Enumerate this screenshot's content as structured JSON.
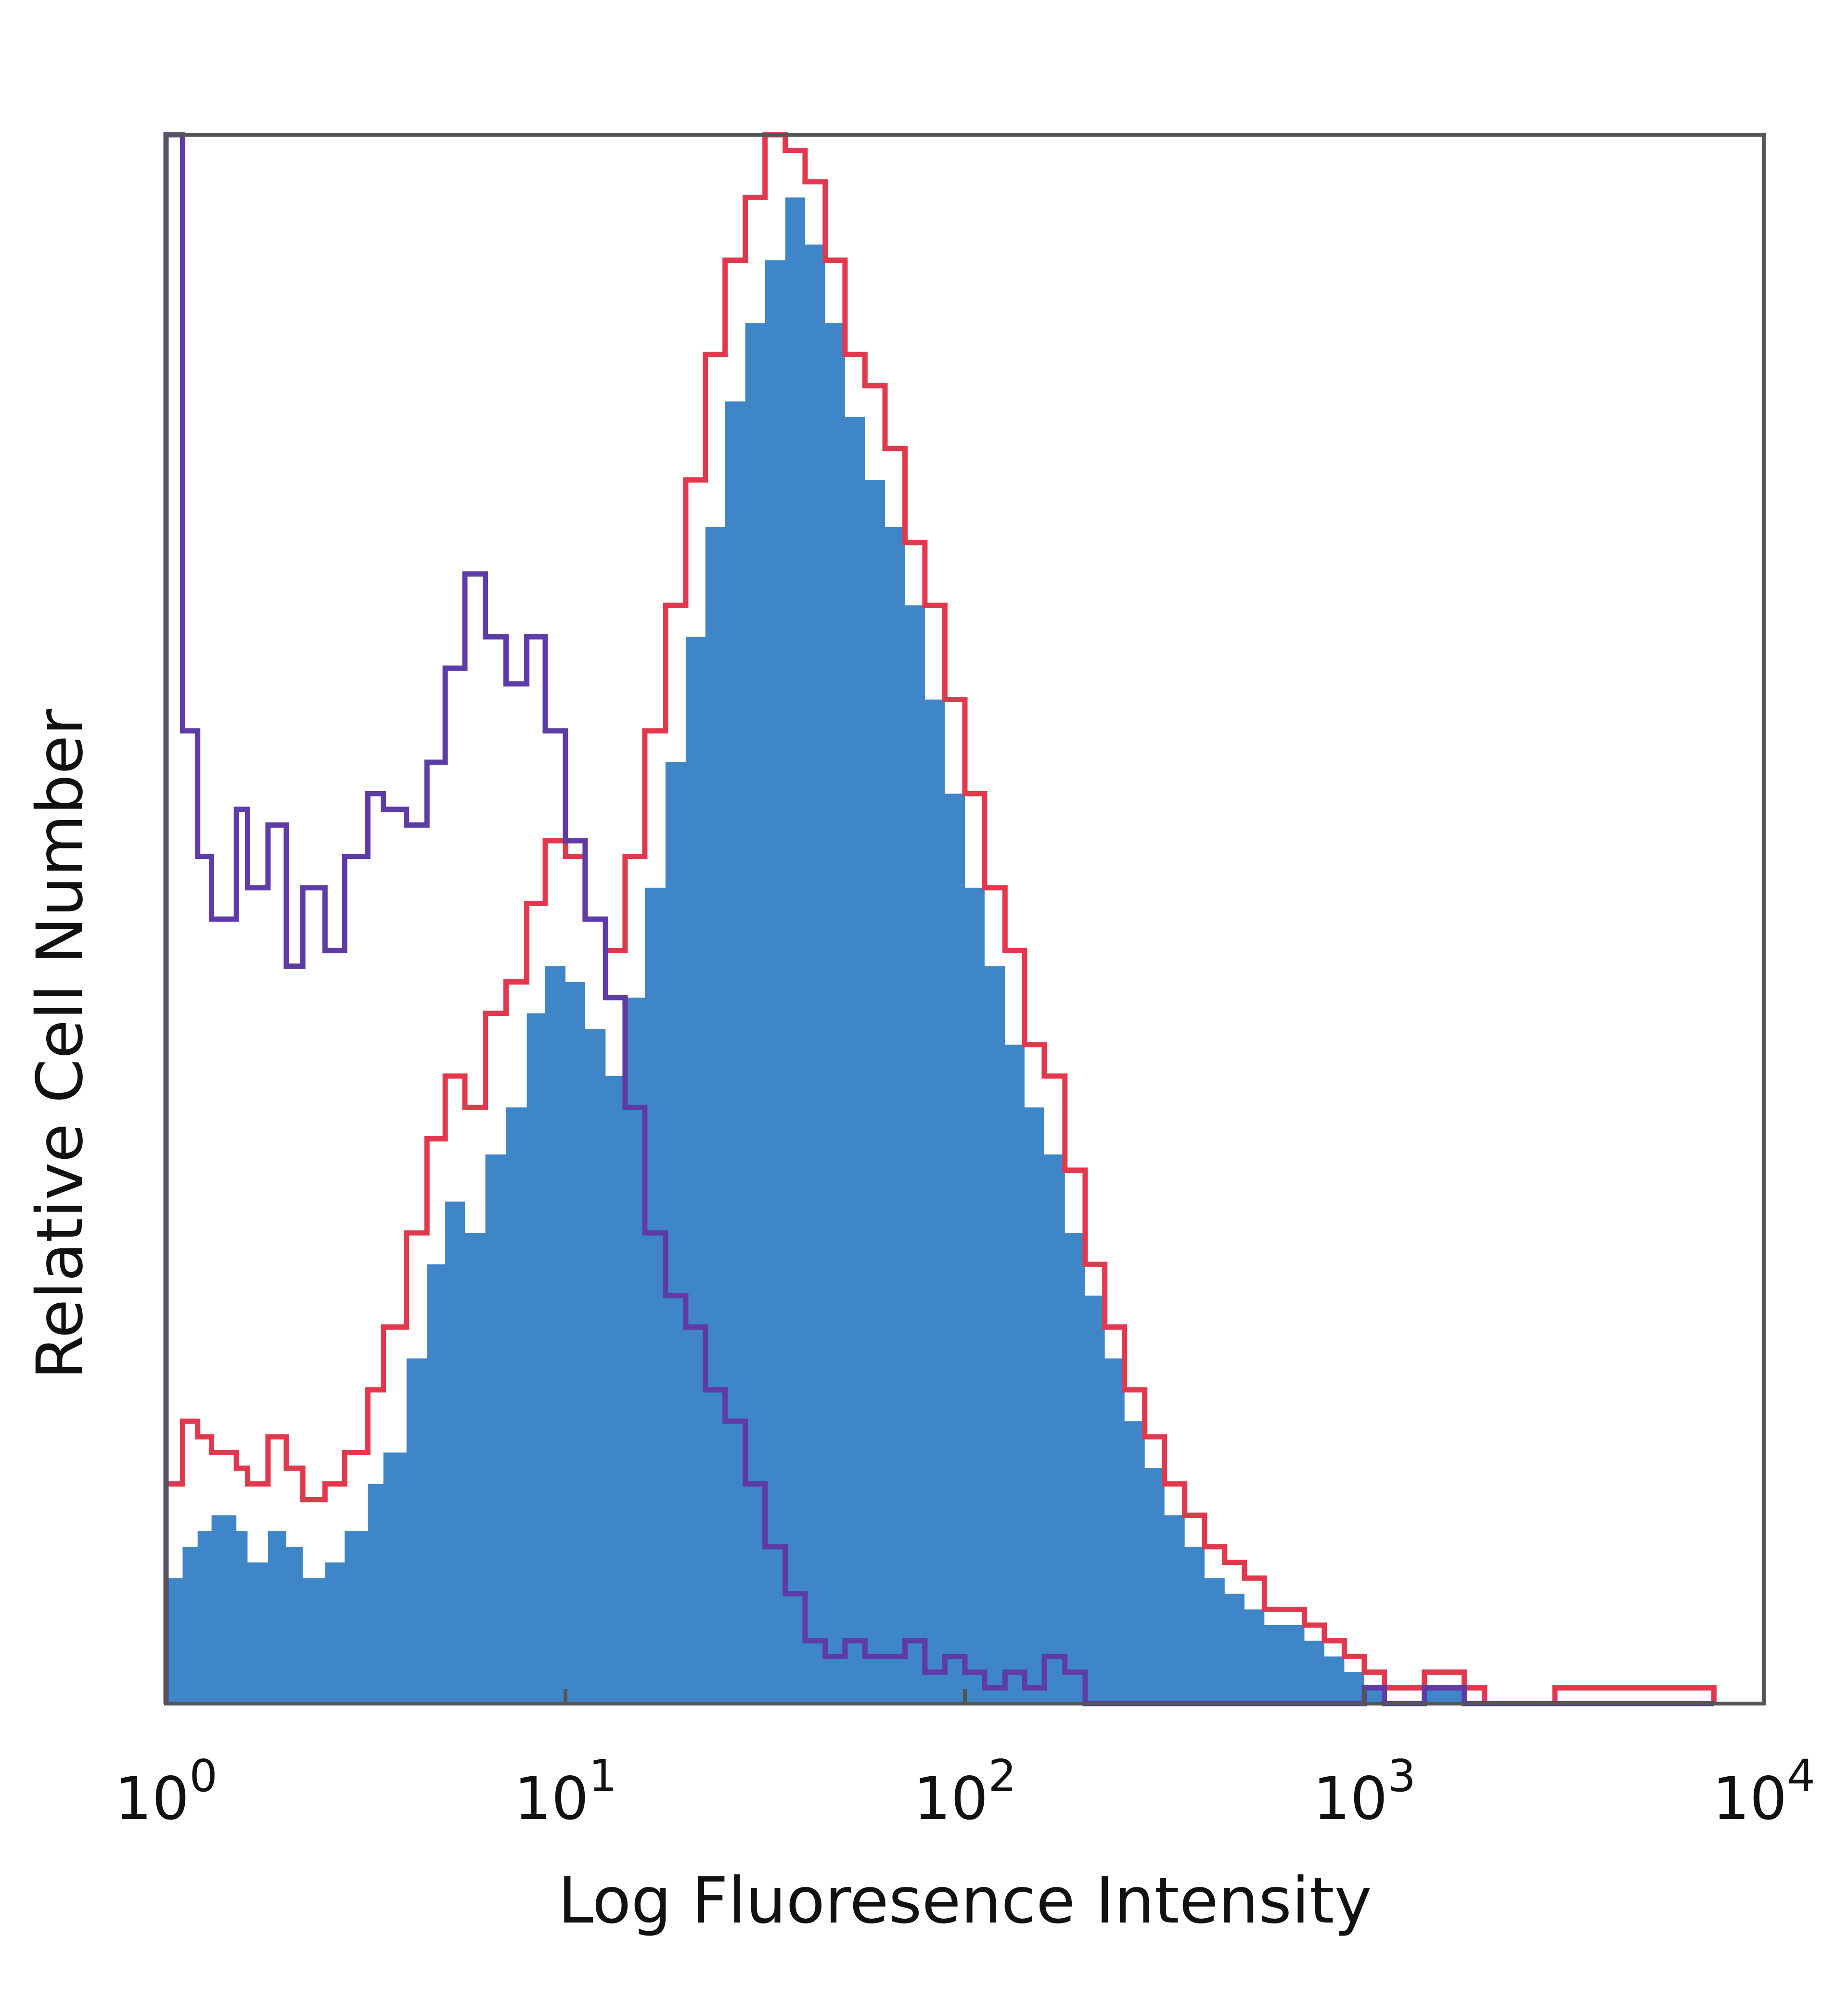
{
  "chart_data": {
    "type": "histogram",
    "xlabel": "Log Fluoresence Intensity",
    "ylabel": "Relative Cell Number",
    "x_scale": "log10",
    "xlim": [
      1,
      10000
    ],
    "ylim": [
      0,
      100
    ],
    "x_ticks": [
      {
        "base": "10",
        "exp": "0",
        "value": 1
      },
      {
        "base": "10",
        "exp": "1",
        "value": 10
      },
      {
        "base": "10",
        "exp": "2",
        "value": 100
      },
      {
        "base": "10",
        "exp": "3",
        "value": 1000
      },
      {
        "base": "10",
        "exp": "4",
        "value": 10000
      }
    ],
    "grid": false,
    "legend": "none",
    "series": [
      {
        "style": "filled",
        "color": "#3f86c9",
        "x": [
          1.0,
          1.1,
          1.2,
          1.3,
          1.5,
          1.6,
          1.8,
          2.0,
          2.2,
          2.5,
          2.8,
          3.2,
          3.5,
          4.0,
          4.5,
          5.0,
          5.6,
          6.3,
          7.1,
          8.0,
          8.9,
          10,
          11.2,
          12.6,
          14.1,
          15.8,
          17.8,
          20,
          22.4,
          25.1,
          28.2,
          31.6,
          35.5,
          39.8,
          44.7,
          50.1,
          56.2,
          63.1,
          70.8,
          79.4,
          89.1,
          100,
          112,
          126,
          141,
          158,
          178,
          200,
          224,
          251,
          282,
          316,
          355,
          398,
          447,
          501,
          562,
          631,
          708,
          794,
          891,
          1000,
          1122,
          1259,
          1413,
          1585,
          1778,
          2000,
          3000,
          5000,
          7000
        ],
        "y": [
          8,
          10,
          11,
          12,
          11,
          9,
          11,
          10,
          8,
          9,
          11,
          14,
          16,
          22,
          28,
          32,
          30,
          35,
          38,
          44,
          47,
          46,
          43,
          40,
          45,
          52,
          60,
          68,
          75,
          83,
          88,
          92,
          96,
          93,
          88,
          82,
          78,
          75,
          70,
          64,
          58,
          52,
          47,
          42,
          38,
          35,
          30,
          26,
          22,
          18,
          15,
          12,
          10,
          8,
          7,
          6,
          5,
          5,
          4,
          3,
          2,
          1,
          0,
          0,
          1,
          1,
          0,
          0,
          0,
          0,
          0
        ]
      },
      {
        "style": "outline",
        "color": "#e2384d",
        "x": [
          1.0,
          1.1,
          1.2,
          1.3,
          1.5,
          1.6,
          1.8,
          2.0,
          2.2,
          2.5,
          2.8,
          3.2,
          3.5,
          4.0,
          4.5,
          5.0,
          5.6,
          6.3,
          7.1,
          8.0,
          8.9,
          10,
          11.2,
          12.6,
          14.1,
          15.8,
          17.8,
          20,
          22.4,
          25.1,
          28.2,
          31.6,
          35.5,
          39.8,
          44.7,
          50.1,
          56.2,
          63.1,
          70.8,
          79.4,
          89.1,
          100,
          112,
          126,
          141,
          158,
          178,
          200,
          224,
          251,
          282,
          316,
          355,
          398,
          447,
          501,
          562,
          631,
          708,
          794,
          891,
          1000,
          1122,
          1259,
          1413,
          1585,
          1778,
          2000,
          3000,
          5000,
          7000
        ],
        "y": [
          14,
          18,
          17,
          16,
          15,
          14,
          17,
          15,
          13,
          14,
          16,
          20,
          24,
          30,
          36,
          40,
          38,
          44,
          46,
          51,
          55,
          54,
          50,
          48,
          54,
          62,
          70,
          78,
          86,
          92,
          96,
          100,
          99,
          97,
          92,
          86,
          84,
          80,
          74,
          70,
          64,
          58,
          52,
          48,
          42,
          40,
          34,
          28,
          24,
          20,
          17,
          14,
          12,
          10,
          9,
          8,
          6,
          6,
          5,
          4,
          3,
          2,
          1,
          1,
          2,
          2,
          1,
          0,
          1,
          1,
          1
        ]
      },
      {
        "style": "outline",
        "color": "#5e3ba6",
        "x": [
          1.0,
          1.1,
          1.2,
          1.3,
          1.5,
          1.6,
          1.8,
          2.0,
          2.2,
          2.5,
          2.8,
          3.2,
          3.5,
          4.0,
          4.5,
          5.0,
          5.6,
          6.3,
          7.1,
          8.0,
          8.9,
          10,
          11.2,
          12.6,
          14.1,
          15.8,
          17.8,
          20,
          22.4,
          25.1,
          28.2,
          31.6,
          35.5,
          39.8,
          44.7,
          50.1,
          56.2,
          63.1,
          70.8,
          79.4,
          89.1,
          100,
          112,
          126,
          141,
          158,
          178,
          200,
          224,
          251,
          282,
          316,
          355,
          398,
          447,
          501,
          562,
          631,
          708,
          794,
          891,
          1000,
          1122,
          1259,
          1413,
          1585,
          1778,
          2000,
          3000,
          5000,
          7000
        ],
        "y": [
          100,
          62,
          54,
          50,
          57,
          52,
          56,
          47,
          52,
          48,
          54,
          58,
          57,
          56,
          60,
          66,
          72,
          68,
          65,
          68,
          62,
          55,
          50,
          45,
          38,
          30,
          26,
          24,
          20,
          18,
          14,
          10,
          7,
          4,
          3,
          4,
          3,
          3,
          4,
          2,
          3,
          2,
          1,
          2,
          1,
          3,
          2,
          0,
          0,
          0,
          0,
          0,
          0,
          0,
          0,
          0,
          0,
          0,
          0,
          0,
          0,
          1,
          0,
          0,
          1,
          1,
          0,
          0,
          0,
          0,
          0
        ]
      }
    ]
  }
}
